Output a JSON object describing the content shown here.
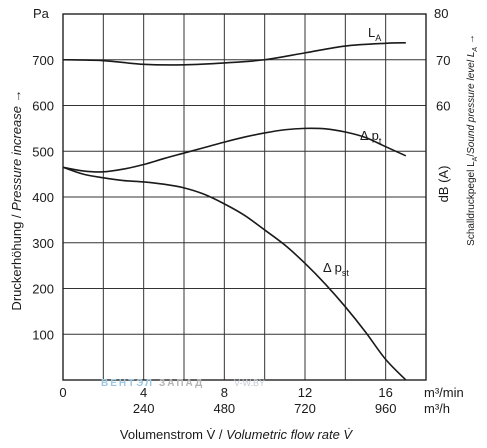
{
  "chart_data": {
    "type": "line",
    "xlabel": "Volumenstrom V̇ / Volumetric flow rate V̇",
    "ylabel": "Druckerhöhung / Pressure increase →",
    "y2label": "Schalldruckpegel LA/Sound pressure level LA →",
    "y_unit": "Pa",
    "y2_unit": "80",
    "y2_unit_side": "dB (A)",
    "x_unit_top": "m³/min",
    "x_unit_bottom": "m³/h",
    "xlim": [
      0,
      18
    ],
    "ylim": [
      0,
      800
    ],
    "y2lim": [
      0,
      80
    ],
    "grid": true,
    "x_ticks": [
      0,
      2,
      4,
      6,
      8,
      10,
      12,
      14,
      16,
      18
    ],
    "y_ticks": [
      0,
      100,
      200,
      300,
      400,
      500,
      600,
      700,
      800
    ],
    "x_tick_labels_top": [
      {
        "x": 0,
        "label": "0"
      },
      {
        "x": 4,
        "label": "4"
      },
      {
        "x": 8,
        "label": "8"
      },
      {
        "x": 12,
        "label": "12"
      },
      {
        "x": 16,
        "label": "16"
      }
    ],
    "x_tick_labels_bottom": [
      {
        "x": 4,
        "label": "240"
      },
      {
        "x": 8,
        "label": "480"
      },
      {
        "x": 12,
        "label": "720"
      },
      {
        "x": 16,
        "label": "960"
      }
    ],
    "y_tick_labels": [
      {
        "y": 100,
        "label": "100"
      },
      {
        "y": 200,
        "label": "200"
      },
      {
        "y": 300,
        "label": "300"
      },
      {
        "y": 400,
        "label": "400"
      },
      {
        "y": 500,
        "label": "500"
      },
      {
        "y": 600,
        "label": "600"
      },
      {
        "y": 700,
        "label": "700"
      }
    ],
    "y2_tick_labels": [
      {
        "y": 60,
        "label": "60"
      },
      {
        "y": 70,
        "label": "70"
      }
    ],
    "series": [
      {
        "name": "L_A",
        "label_main": "L",
        "label_sub": "A",
        "axis": "right",
        "x": [
          0,
          2,
          4,
          6,
          8,
          10,
          12,
          14,
          16,
          17
        ],
        "y": [
          70.0,
          69.8,
          69.0,
          68.9,
          69.3,
          70.0,
          71.5,
          73.0,
          73.6,
          73.7
        ]
      },
      {
        "name": "Δ p_t",
        "label_main": "Δ p",
        "label_sub": "t",
        "axis": "left",
        "x": [
          0,
          1,
          2,
          3,
          4,
          5,
          6,
          7,
          8,
          9,
          10,
          11,
          12,
          13,
          14,
          15,
          16,
          17
        ],
        "y": [
          465,
          457,
          455,
          461,
          471,
          484,
          496,
          508,
          520,
          531,
          540,
          547,
          550,
          549,
          542,
          530,
          510,
          490
        ]
      },
      {
        "name": "Δ p_st",
        "label_main": "Δ p",
        "label_sub": "st",
        "axis": "left",
        "x": [
          0,
          1,
          2,
          3,
          4,
          5,
          6,
          7,
          8,
          9,
          10,
          11,
          12,
          13,
          14,
          15,
          16,
          17
        ],
        "y": [
          465,
          450,
          442,
          436,
          433,
          428,
          420,
          406,
          385,
          360,
          328,
          295,
          255,
          210,
          160,
          105,
          45,
          0
        ]
      }
    ]
  },
  "watermark": {
    "text_a": "ВЕНТЭЛ",
    "text_b": "ЗАПАД",
    "text_c": "V-W.BY"
  }
}
